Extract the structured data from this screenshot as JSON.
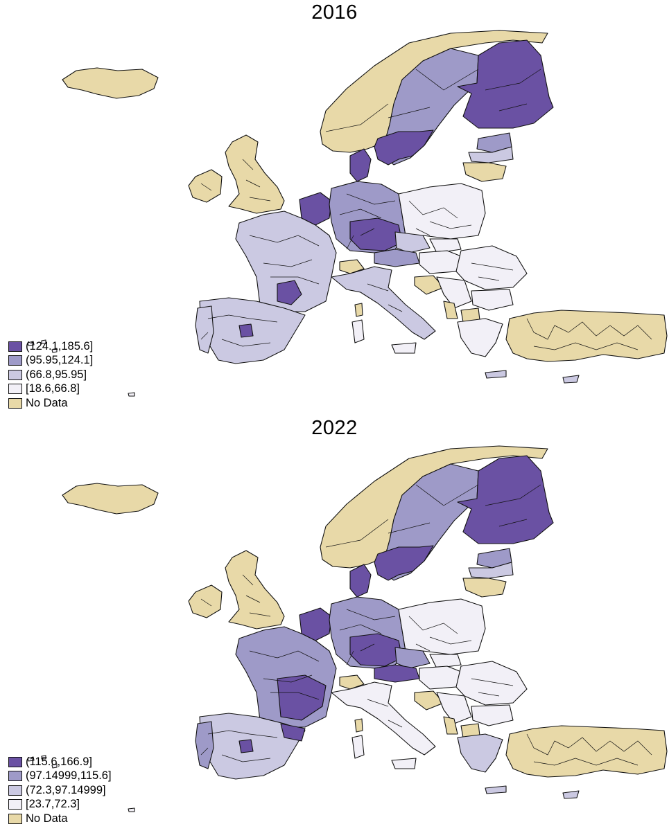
{
  "maps": [
    {
      "title": "2016",
      "legend": [
        {
          "label": "(124.1,185.6]",
          "color": "#6a51a3"
        },
        {
          "label": "(95.95,124.1]",
          "color": "#9e9ac8"
        },
        {
          "label": "(66.8,95.95]",
          "color": "#cbc9e2"
        },
        {
          "label": "[18.6,66.8]",
          "color": "#f2f0f7"
        },
        {
          "label": "No Data",
          "color": "#e8d9a8"
        }
      ]
    },
    {
      "title": "2022",
      "legend": [
        {
          "label": "(115.6,166.9]",
          "color": "#6a51a3"
        },
        {
          "label": "(97.14999,115.6]",
          "color": "#9e9ac8"
        },
        {
          "label": "(72.3,97.14999]",
          "color": "#cbc9e2"
        },
        {
          "label": "[23.7,72.3]",
          "color": "#f2f0f7"
        },
        {
          "label": "No Data",
          "color": "#e8d9a8"
        }
      ]
    }
  ]
}
